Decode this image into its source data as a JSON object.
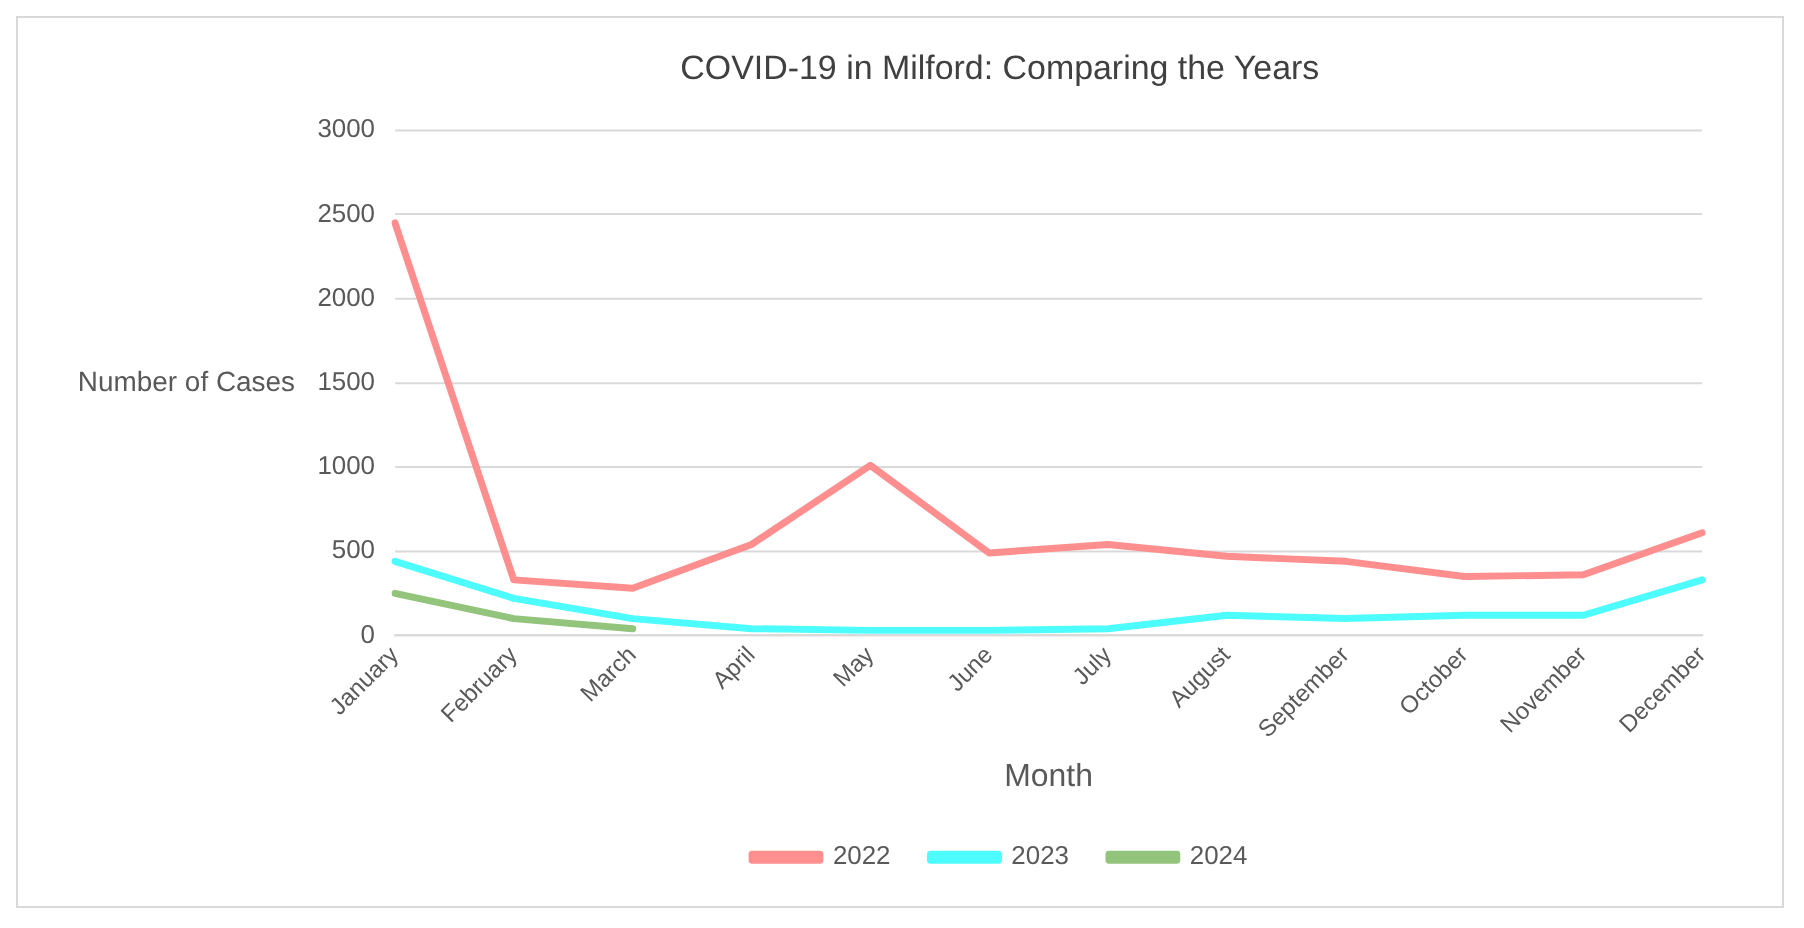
{
  "chart_data": {
    "type": "line",
    "title": "COVID-19 in Milford: Comparing the Years",
    "xlabel": "Month",
    "ylabel": "Number of Cases",
    "categories": [
      "January",
      "February",
      "March",
      "April",
      "May",
      "June",
      "July",
      "August",
      "September",
      "October",
      "November",
      "December"
    ],
    "series": [
      {
        "name": "2022",
        "color": "#ff8f8f",
        "values": [
          2450,
          330,
          280,
          540,
          1010,
          490,
          540,
          470,
          440,
          350,
          360,
          610
        ]
      },
      {
        "name": "2023",
        "color": "#4dfdfd",
        "values": [
          440,
          220,
          100,
          40,
          30,
          30,
          40,
          120,
          100,
          120,
          120,
          330
        ]
      },
      {
        "name": "2024",
        "color": "#92c47c",
        "values": [
          250,
          100,
          40,
          null,
          null,
          null,
          null,
          null,
          null,
          null,
          null,
          null
        ]
      }
    ],
    "ylim": [
      0,
      3000
    ],
    "yticks": [
      0,
      500,
      1000,
      1500,
      2000,
      2500,
      3000
    ],
    "grid": "y",
    "legend": "bottom",
    "marker": "none",
    "line_style": "solid"
  }
}
